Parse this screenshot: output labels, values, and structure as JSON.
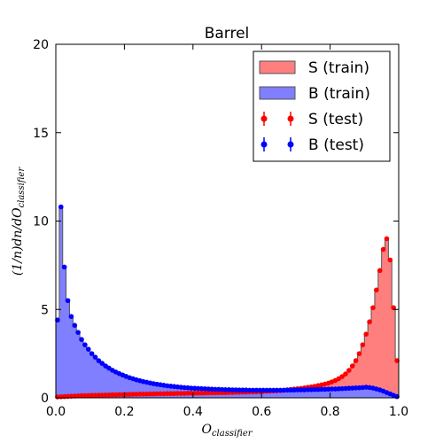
{
  "chart_data": {
    "type": "area",
    "title": "Barrel",
    "xlabel": "O_classifier",
    "xlabel_main": "O",
    "xlabel_sub": "classifier",
    "ylabel": "(1/n)dn/dO_classifier",
    "ylabel_main": "(1/n)dn/dO",
    "ylabel_sub": "classifier",
    "xlim": [
      0.0,
      1.0
    ],
    "ylim": [
      0,
      20
    ],
    "xticks": [
      "0.0",
      "0.2",
      "0.4",
      "0.6",
      "0.8",
      "1.0"
    ],
    "yticks": [
      "0",
      "5",
      "10",
      "15",
      "20"
    ],
    "grid": false,
    "legend_position": "top-right",
    "colors": {
      "signal_fill": "#ff7f7f",
      "background_fill": "#7f7fff",
      "signal_points": "#ff0000",
      "background_points": "#0000ff",
      "step_outline": "#555555"
    },
    "series": [
      {
        "name": "S (train)",
        "kind": "histogram",
        "bin_start": 0.0,
        "bin_width": 0.01,
        "values": [
          0.05,
          0.06,
          0.07,
          0.08,
          0.09,
          0.1,
          0.11,
          0.12,
          0.12,
          0.13,
          0.14,
          0.14,
          0.15,
          0.15,
          0.16,
          0.16,
          0.17,
          0.17,
          0.18,
          0.18,
          0.19,
          0.19,
          0.2,
          0.2,
          0.21,
          0.21,
          0.21,
          0.22,
          0.22,
          0.23,
          0.23,
          0.23,
          0.24,
          0.24,
          0.24,
          0.25,
          0.25,
          0.25,
          0.26,
          0.26,
          0.26,
          0.27,
          0.27,
          0.27,
          0.28,
          0.28,
          0.28,
          0.29,
          0.29,
          0.29,
          0.3,
          0.3,
          0.31,
          0.31,
          0.32,
          0.32,
          0.33,
          0.33,
          0.34,
          0.35,
          0.36,
          0.37,
          0.38,
          0.39,
          0.4,
          0.41,
          0.43,
          0.45,
          0.47,
          0.49,
          0.51,
          0.53,
          0.56,
          0.59,
          0.62,
          0.65,
          0.69,
          0.73,
          0.78,
          0.83,
          0.9,
          0.98,
          1.08,
          1.2,
          1.35,
          1.55,
          1.8,
          2.1,
          2.5,
          3.0,
          3.6,
          4.3,
          5.1,
          6.1,
          7.2,
          8.4,
          9.0,
          7.8,
          5.1,
          2.1
        ]
      },
      {
        "name": "B (train)",
        "kind": "histogram",
        "bin_start": 0.0,
        "bin_width": 0.01,
        "values": [
          4.4,
          10.8,
          7.4,
          5.5,
          4.6,
          4.1,
          3.7,
          3.3,
          3.0,
          2.75,
          2.5,
          2.3,
          2.1,
          1.95,
          1.8,
          1.68,
          1.56,
          1.46,
          1.37,
          1.29,
          1.21,
          1.14,
          1.08,
          1.02,
          0.97,
          0.92,
          0.88,
          0.84,
          0.8,
          0.77,
          0.74,
          0.71,
          0.68,
          0.66,
          0.64,
          0.62,
          0.6,
          0.58,
          0.57,
          0.55,
          0.54,
          0.53,
          0.52,
          0.51,
          0.5,
          0.49,
          0.48,
          0.48,
          0.47,
          0.46,
          0.46,
          0.45,
          0.45,
          0.44,
          0.44,
          0.44,
          0.43,
          0.43,
          0.43,
          0.43,
          0.43,
          0.43,
          0.43,
          0.43,
          0.43,
          0.43,
          0.43,
          0.44,
          0.44,
          0.44,
          0.45,
          0.45,
          0.45,
          0.46,
          0.46,
          0.47,
          0.47,
          0.48,
          0.48,
          0.49,
          0.5,
          0.5,
          0.51,
          0.52,
          0.53,
          0.54,
          0.55,
          0.56,
          0.57,
          0.58,
          0.6,
          0.58,
          0.55,
          0.5,
          0.45,
          0.38,
          0.3,
          0.22,
          0.14,
          0.07
        ]
      },
      {
        "name": "S (test)",
        "kind": "points",
        "note": "same binning as S (train)"
      },
      {
        "name": "B (test)",
        "kind": "points",
        "note": "same binning as B (train)"
      }
    ]
  }
}
